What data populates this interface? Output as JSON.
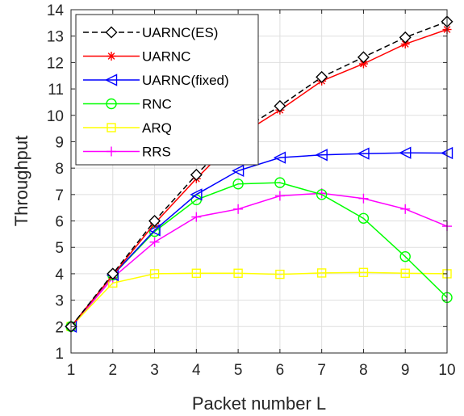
{
  "chart_data": {
    "type": "line",
    "xlabel": "Packet number L",
    "ylabel": "Throughput",
    "xlim": [
      1,
      10
    ],
    "ylim": [
      1,
      14
    ],
    "xticks": [
      1,
      2,
      3,
      4,
      5,
      6,
      7,
      8,
      9,
      10
    ],
    "yticks": [
      1,
      2,
      3,
      4,
      5,
      6,
      7,
      8,
      9,
      10,
      11,
      12,
      13,
      14
    ],
    "grid": true,
    "legend_position": "top-left",
    "x": [
      1,
      2,
      3,
      4,
      5,
      6,
      7,
      8,
      9,
      10
    ],
    "series": [
      {
        "name": "UARNC(ES)",
        "color": "#000000",
        "dash": "dashed",
        "marker": "diamond",
        "values": [
          2.0,
          4.0,
          6.0,
          7.75,
          9.35,
          10.35,
          11.45,
          12.2,
          12.95,
          13.55
        ]
      },
      {
        "name": "UARNC",
        "color": "#ff0000",
        "dash": "solid",
        "marker": "asterisk",
        "values": [
          2.0,
          3.95,
          5.9,
          7.6,
          9.2,
          10.2,
          11.3,
          11.95,
          12.7,
          13.25
        ]
      },
      {
        "name": "UARNC(fixed)",
        "color": "#0000ff",
        "dash": "solid",
        "marker": "triangle-left",
        "values": [
          2.0,
          3.95,
          5.65,
          7.0,
          7.9,
          8.4,
          8.5,
          8.55,
          8.58,
          8.57
        ]
      },
      {
        "name": "RNC",
        "color": "#00ff00",
        "dash": "solid",
        "marker": "circle",
        "values": [
          2.0,
          3.95,
          5.6,
          6.8,
          7.4,
          7.45,
          7.0,
          6.1,
          4.65,
          3.1
        ]
      },
      {
        "name": "ARQ",
        "color": "#ffff00",
        "dash": "solid",
        "marker": "square",
        "values": [
          2.0,
          3.65,
          4.0,
          4.02,
          4.02,
          3.98,
          4.03,
          4.05,
          4.02,
          4.0
        ]
      },
      {
        "name": "RRS",
        "color": "#ff00ff",
        "dash": "solid",
        "marker": "plus",
        "values": [
          1.95,
          3.85,
          5.2,
          6.15,
          6.45,
          6.95,
          7.05,
          6.85,
          6.45,
          5.8
        ]
      }
    ]
  }
}
